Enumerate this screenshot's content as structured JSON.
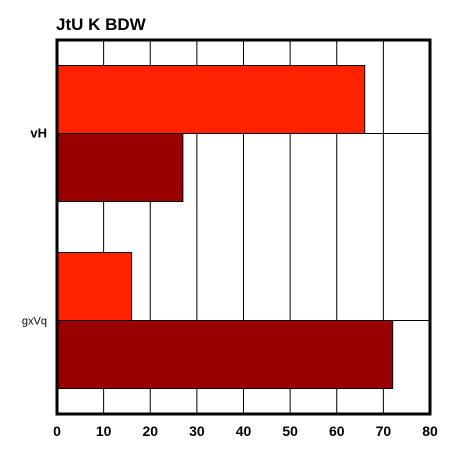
{
  "chart_data": {
    "type": "bar",
    "orientation": "horizontal",
    "title": "JtU K BDW",
    "categories": [
      "vH",
      "gxVq"
    ],
    "series": [
      {
        "values": [
          66,
          16
        ],
        "color": "#ff2200"
      },
      {
        "values": [
          27,
          72
        ],
        "color": "#990000"
      }
    ],
    "xlim": [
      0,
      80
    ],
    "x_ticks": [
      "0",
      "10",
      "20",
      "30",
      "40",
      "50",
      "60",
      "70",
      "80"
    ],
    "grid": true
  }
}
